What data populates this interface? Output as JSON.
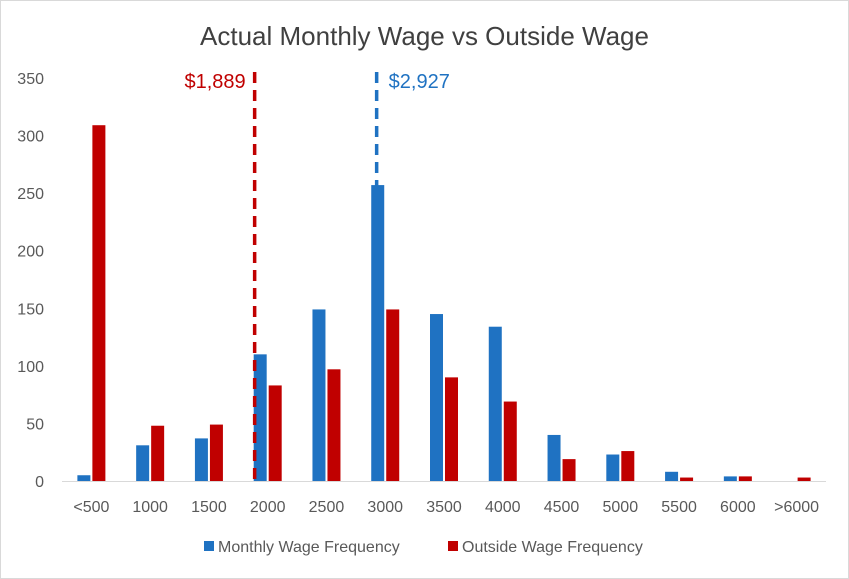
{
  "chart_data": {
    "type": "bar",
    "title": "Actual Monthly Wage vs Outside Wage",
    "xlabel": "",
    "ylabel": "",
    "ylim": [
      0,
      350
    ],
    "y_ticks": [
      "0",
      "50",
      "100",
      "150",
      "200",
      "250",
      "300",
      "350"
    ],
    "grid": false,
    "legend_position": "bottom",
    "categories": [
      "<500",
      "1000",
      "1500",
      "2000",
      "2500",
      "3000",
      "3500",
      "4000",
      "4500",
      "5000",
      "5500",
      "6000",
      ">6000"
    ],
    "series": [
      {
        "name": "Monthly Wage Frequency",
        "color": "#1f72c2",
        "values": [
          5,
          31,
          37,
          110,
          149,
          257,
          145,
          134,
          40,
          23,
          8,
          4,
          0
        ]
      },
      {
        "name": "Outside Wage Frequency",
        "color": "#c00000",
        "values": [
          309,
          48,
          49,
          83,
          97,
          149,
          90,
          69,
          19,
          26,
          3,
          4,
          3
        ]
      }
    ],
    "reference_lines": [
      {
        "label": "$1,889",
        "value": 1889,
        "color": "#c00000",
        "label_side": "left"
      },
      {
        "label": "$2,927",
        "value": 2927,
        "color": "#1f72c2",
        "label_side": "right"
      }
    ]
  }
}
